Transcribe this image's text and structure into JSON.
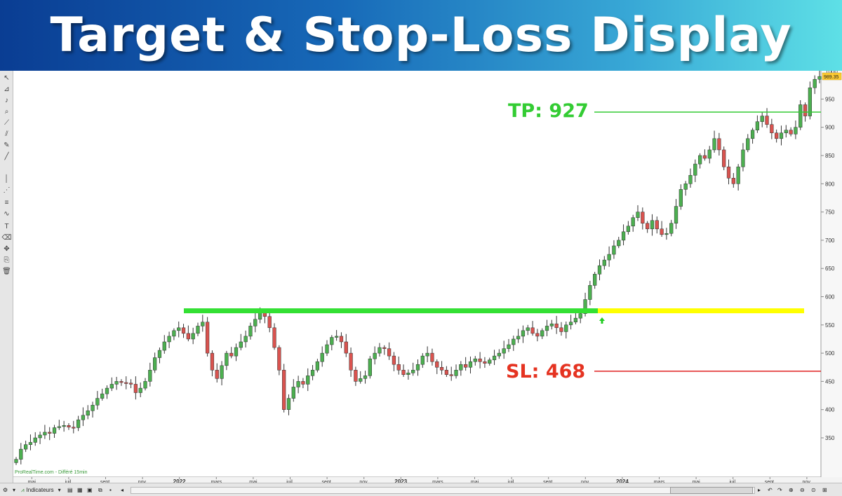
{
  "banner": {
    "title": "Target & Stop-Loss Display"
  },
  "watermark": "ProRealTime.com - Différé 15min",
  "annotations": {
    "tp_label": "TP: 927",
    "sl_label": "SL: 468"
  },
  "bottom_toolbar": {
    "indicators_label": "Indicateurs"
  },
  "toolbar_icons": [
    "cursor-icon",
    "ruler-icon",
    "bell-icon",
    "zoom-icon",
    "trendline-icon",
    "channel-icon",
    "pencil-icon",
    "line-icon",
    "vertical-line-icon",
    "fibonacci-icon",
    "horizontal-lines-icon",
    "wave-icon",
    "text-icon",
    "eraser-icon",
    "move-icon",
    "copy-icon",
    "trash-icon"
  ],
  "colors": {
    "up_candle": "#4caf50",
    "down_candle": "#d9534f",
    "breakout_line": "#33e033",
    "projection_line": "#ffff00",
    "tp_line": "#33cc33",
    "sl_line": "#e02020",
    "current_price_tag": "#ffcc33"
  },
  "chart_data": {
    "type": "candlestick",
    "title": "",
    "ylim": [
      300,
      1000
    ],
    "y_ticks": [
      350,
      400,
      450,
      500,
      550,
      600,
      650,
      700,
      750,
      800,
      850,
      900,
      950
    ],
    "top_tick_partial": "1000",
    "current_price": "989.35",
    "x_tick_labels": [
      {
        "label": "mai",
        "x": "2021-05"
      },
      {
        "label": "juil.",
        "x": "2021-07"
      },
      {
        "label": "sept.",
        "x": "2021-09"
      },
      {
        "label": "nov.",
        "x": "2021-11"
      },
      {
        "label": "2022",
        "x": "2022-01"
      },
      {
        "label": "mars",
        "x": "2022-03"
      },
      {
        "label": "mai",
        "x": "2022-05"
      },
      {
        "label": "juil.",
        "x": "2022-07"
      },
      {
        "label": "sept.",
        "x": "2022-09"
      },
      {
        "label": "nov.",
        "x": "2022-11"
      },
      {
        "label": "2023",
        "x": "2023-01"
      },
      {
        "label": "mars",
        "x": "2023-03"
      },
      {
        "label": "mai",
        "x": "2023-05"
      },
      {
        "label": "juil.",
        "x": "2023-07"
      },
      {
        "label": "sept.",
        "x": "2023-09"
      },
      {
        "label": "nov.",
        "x": "2023-11"
      },
      {
        "label": "2024",
        "x": "2024-01"
      },
      {
        "label": "mars",
        "x": "2024-03"
      },
      {
        "label": "mai",
        "x": "2024-05"
      },
      {
        "label": "juil.",
        "x": "2024-07"
      },
      {
        "label": "sept.",
        "x": "2024-09"
      },
      {
        "label": "nov.",
        "x": "2024-11"
      }
    ],
    "levels": [
      {
        "name": "breakout",
        "value": 575,
        "x_start": "2022-01",
        "x_end": "2023-12"
      },
      {
        "name": "projection",
        "value": 575,
        "x_start": "2023-12",
        "x_end": "2024-12"
      },
      {
        "name": "target",
        "value": 927
      },
      {
        "name": "stop-loss",
        "value": 468
      }
    ],
    "closes": [
      312,
      330,
      338,
      342,
      350,
      355,
      360,
      358,
      368,
      370,
      372,
      369,
      368,
      382,
      390,
      398,
      408,
      420,
      428,
      438,
      445,
      450,
      448,
      447,
      445,
      430,
      438,
      450,
      470,
      492,
      505,
      520,
      530,
      540,
      545,
      535,
      525,
      535,
      548,
      555,
      500,
      470,
      455,
      478,
      500,
      495,
      510,
      520,
      530,
      548,
      560,
      572,
      565,
      545,
      510,
      470,
      400,
      420,
      440,
      450,
      445,
      460,
      470,
      485,
      500,
      515,
      528,
      530,
      520,
      500,
      470,
      450,
      455,
      460,
      490,
      500,
      510,
      508,
      495,
      480,
      470,
      462,
      465,
      470,
      480,
      495,
      500,
      485,
      475,
      470,
      462,
      460,
      470,
      480,
      475,
      485,
      490,
      485,
      482,
      488,
      495,
      500,
      508,
      515,
      525,
      530,
      540,
      545,
      535,
      530,
      540,
      548,
      552,
      545,
      538,
      550,
      555,
      562,
      570,
      595,
      620,
      640,
      655,
      665,
      675,
      690,
      700,
      715,
      725,
      740,
      750,
      730,
      720,
      735,
      720,
      710,
      712,
      730,
      760,
      790,
      800,
      815,
      835,
      850,
      845,
      860,
      880,
      860,
      830,
      810,
      800,
      830,
      860,
      880,
      895,
      910,
      920,
      905,
      890,
      880,
      890,
      895,
      888,
      900,
      940,
      920,
      970,
      985,
      990
    ]
  }
}
